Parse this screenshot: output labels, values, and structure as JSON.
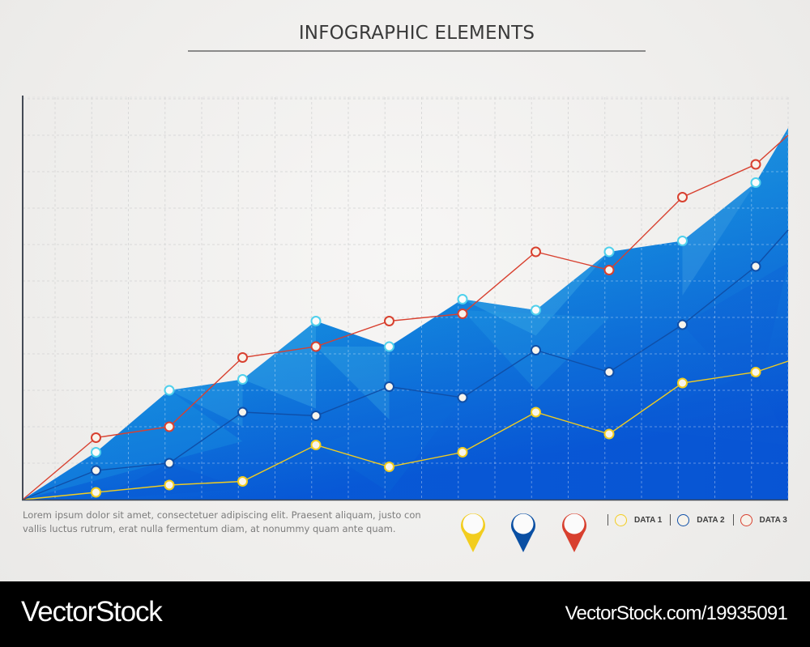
{
  "header": {
    "title": "INFOGRAPHIC ELEMENTS"
  },
  "caption": {
    "line1": "Lorem ipsum dolor sit amet,  consectetuer adipiscing elit. Praesent aliquam, justo con",
    "line2": "vallis  luctus rutrum, erat  nulla fermentum diam, at nonummy quam ante  quam."
  },
  "pins": [
    {
      "name": "yellow-pin",
      "color": "#f2cd1f"
    },
    {
      "name": "blue-pin",
      "color": "#0a4fa3"
    },
    {
      "name": "red-pin",
      "color": "#d8402f"
    }
  ],
  "legend": [
    {
      "label": "DATA 1",
      "color": "#f2cd1f"
    },
    {
      "label": "DATA 2",
      "color": "#0f4fa8"
    },
    {
      "label": "DATA 3",
      "color": "#d8402f"
    }
  ],
  "footer": {
    "brand": "VectorStock",
    "url": "VectorStock.com/19935091"
  },
  "colors": {
    "area_top": "#3fcbea",
    "area_bottom": "#0b5fd9",
    "axis": "#444a55",
    "grid": "#d6d6d6",
    "area_marker": "#4fd0ec"
  },
  "chart_data": {
    "type": "line",
    "title": "INFOGRAPHIC ELEMENTS",
    "xlabel": "",
    "ylabel": "",
    "grid": true,
    "legend_position": "bottom-right",
    "x": [
      0,
      1,
      2,
      3,
      4,
      5,
      6,
      7,
      8,
      9,
      10,
      10.5
    ],
    "ylim": [
      0,
      11
    ],
    "series": [
      {
        "name": "DATA 1",
        "color": "#f2cd1f",
        "values": [
          0,
          0.2,
          0.4,
          0.5,
          1.5,
          0.9,
          1.3,
          2.4,
          1.8,
          3.2,
          3.5,
          3.8
        ]
      },
      {
        "name": "DATA 2",
        "color": "#0f4fa8",
        "values": [
          0,
          0.8,
          1.0,
          2.4,
          2.3,
          3.1,
          2.8,
          4.1,
          3.5,
          4.8,
          6.4,
          7.4
        ]
      },
      {
        "name": "DATA 3",
        "color": "#d8402f",
        "values": [
          0,
          1.7,
          2.0,
          3.9,
          4.2,
          4.9,
          5.1,
          6.8,
          6.3,
          8.3,
          9.2,
          10.0
        ]
      },
      {
        "name": "Area",
        "type": "area",
        "color": "#2aa6e6",
        "values": [
          0,
          1.3,
          3.0,
          3.3,
          4.9,
          4.2,
          5.5,
          5.2,
          6.8,
          7.1,
          8.7,
          10.2
        ]
      }
    ]
  }
}
